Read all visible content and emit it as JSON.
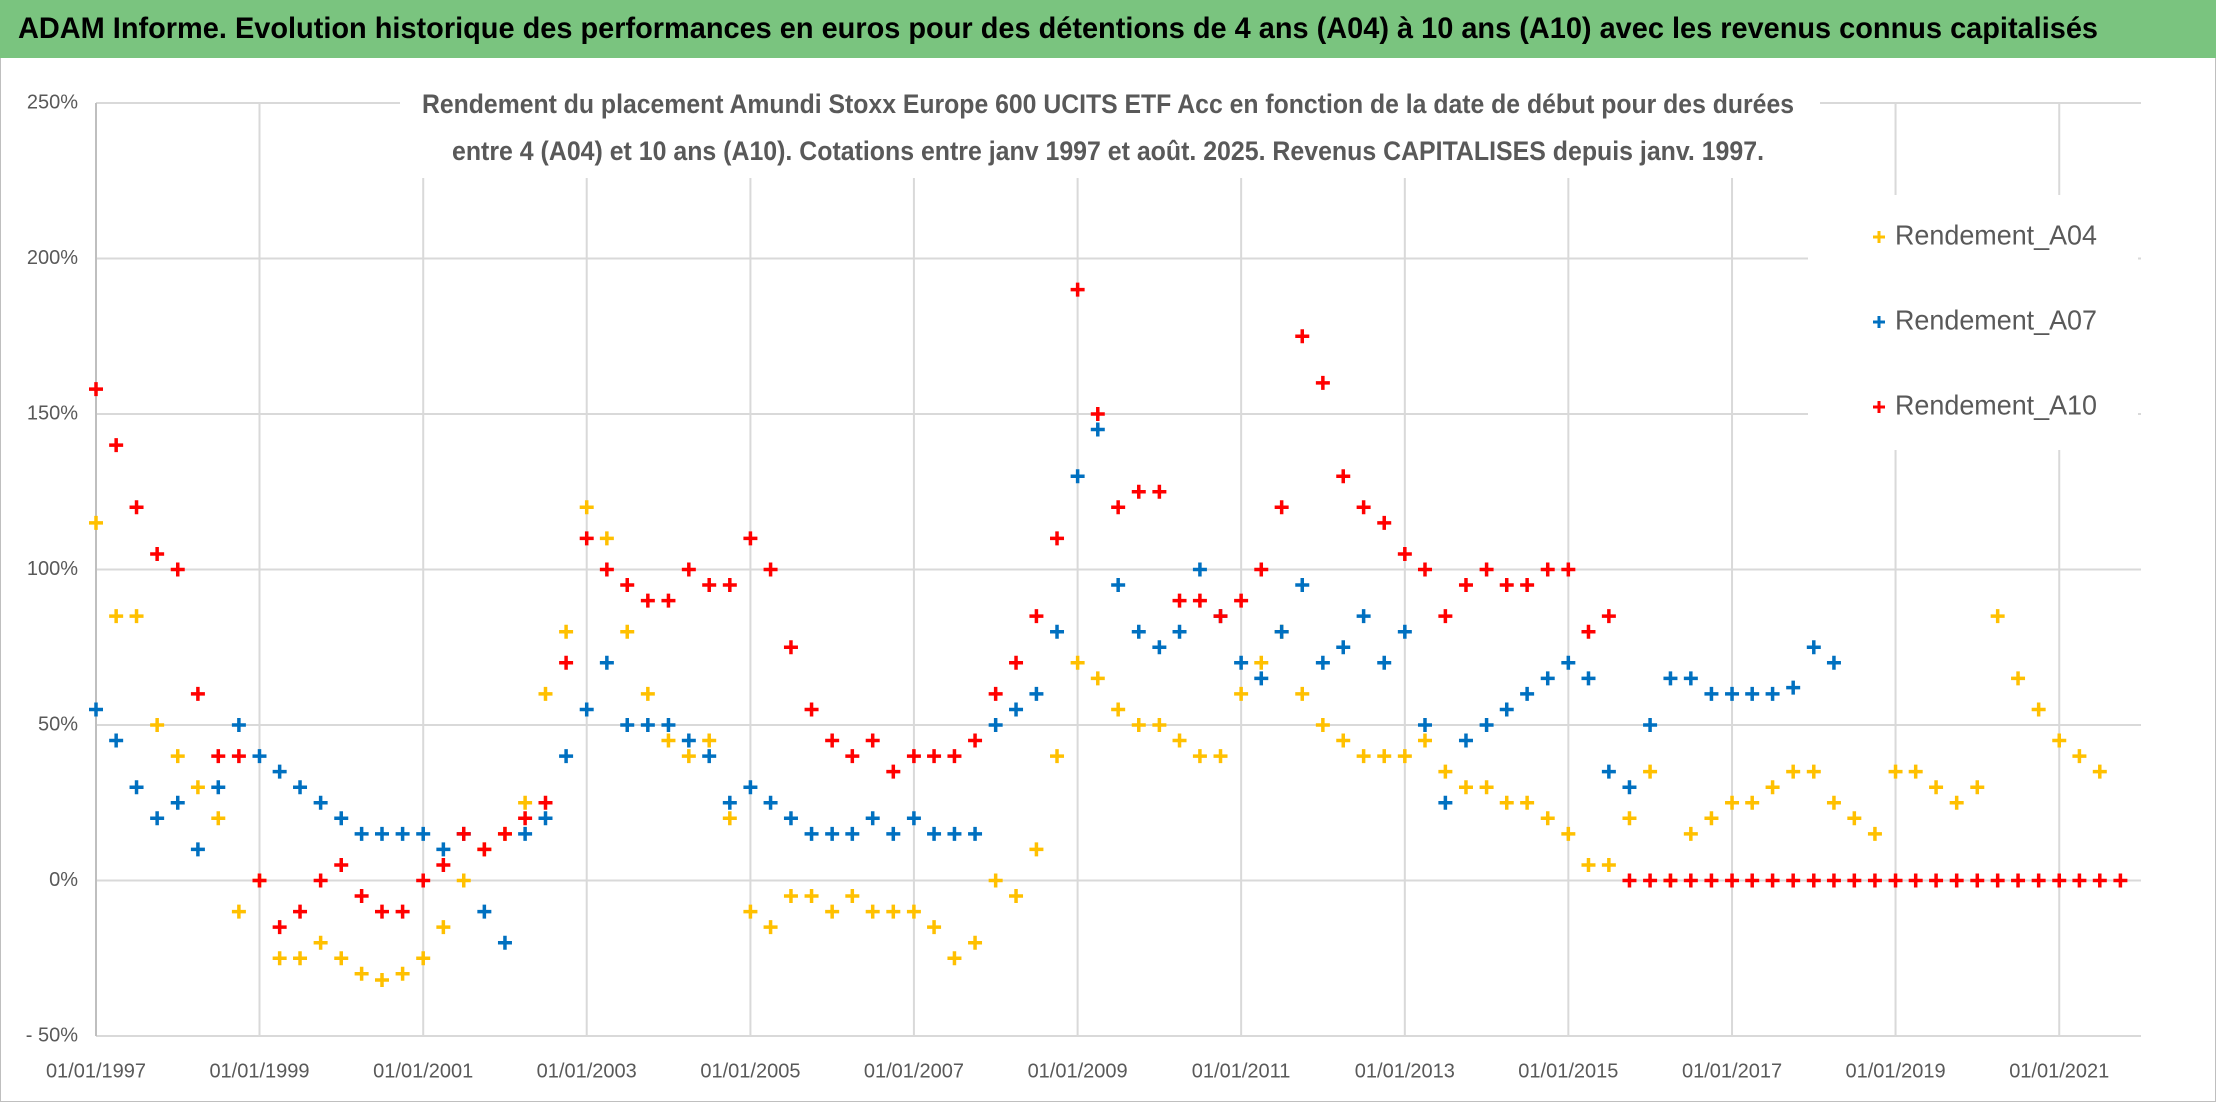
{
  "header": {
    "title": "ADAM Informe. Evolution historique des performances en euros pour des détentions de 4 ans (A04) à 10 ans (A10) avec les revenus connus capitalisés"
  },
  "chart_data": {
    "type": "scatter",
    "title": [
      "Rendement du placement Amundi Stoxx Europe 600 UCITS ETF Acc en fonction de la date de début pour des durées",
      "entre 4 (A04) et 10 ans (A10). Cotations entre janv 1997 et août. 2025. Revenus CAPITALISES depuis janv. 1997."
    ],
    "x": [
      "01/01/1997",
      "01/04/1997",
      "01/07/1997",
      "01/10/1997",
      "01/01/1998",
      "01/04/1998",
      "01/07/1998",
      "01/10/1998",
      "01/01/1999",
      "01/04/1999",
      "01/07/1999",
      "01/10/1999",
      "01/01/2000",
      "01/04/2000",
      "01/07/2000",
      "01/10/2000",
      "01/01/2001",
      "01/04/2001",
      "01/07/2001",
      "01/10/2001",
      "01/01/2002",
      "01/04/2002",
      "01/07/2002",
      "01/10/2002",
      "01/01/2003",
      "01/04/2003",
      "01/07/2003",
      "01/10/2003",
      "01/01/2004",
      "01/04/2004",
      "01/07/2004",
      "01/10/2004",
      "01/01/2005",
      "01/04/2005",
      "01/07/2005",
      "01/10/2005",
      "01/01/2006",
      "01/04/2006",
      "01/07/2006",
      "01/10/2006",
      "01/01/2007",
      "01/04/2007",
      "01/07/2007",
      "01/10/2007",
      "01/01/2008",
      "01/04/2008",
      "01/07/2008",
      "01/10/2008",
      "01/01/2009",
      "01/04/2009",
      "01/07/2009",
      "01/10/2009",
      "01/01/2010",
      "01/04/2010",
      "01/07/2010",
      "01/10/2010",
      "01/01/2011",
      "01/04/2011",
      "01/07/2011",
      "01/10/2011",
      "01/01/2012",
      "01/04/2012",
      "01/07/2012",
      "01/10/2012",
      "01/01/2013",
      "01/04/2013",
      "01/07/2013",
      "01/10/2013",
      "01/01/2014",
      "01/04/2014",
      "01/07/2014",
      "01/10/2014",
      "01/01/2015",
      "01/04/2015",
      "01/07/2015",
      "01/10/2015",
      "01/01/2016",
      "01/04/2016",
      "01/07/2016",
      "01/10/2016",
      "01/01/2017",
      "01/04/2017",
      "01/07/2017",
      "01/10/2017",
      "01/01/2018",
      "01/04/2018",
      "01/07/2018",
      "01/10/2018",
      "01/01/2019",
      "01/04/2019",
      "01/07/2019",
      "01/10/2019",
      "01/01/2020",
      "01/04/2020",
      "01/07/2020",
      "01/10/2020",
      "01/01/2021",
      "01/04/2021",
      "01/07/2021",
      "01/10/2021"
    ],
    "series": [
      {
        "name": "Rendement_A04",
        "color": "#ffc000",
        "values": [
          115,
          85,
          85,
          50,
          40,
          30,
          20,
          -10,
          0,
          -25,
          -25,
          -20,
          -25,
          -30,
          -32,
          -30,
          -25,
          -15,
          0,
          10,
          15,
          25,
          60,
          80,
          120,
          110,
          80,
          60,
          45,
          40,
          45,
          20,
          -10,
          -15,
          -5,
          -5,
          -10,
          -5,
          -10,
          -10,
          -10,
          -15,
          -25,
          -20,
          0,
          -5,
          10,
          40,
          70,
          65,
          55,
          50,
          50,
          45,
          40,
          40,
          60,
          70,
          80,
          60,
          50,
          45,
          40,
          40,
          40,
          45,
          35,
          30,
          30,
          25,
          25,
          20,
          15,
          5,
          5,
          20,
          35,
          0,
          15,
          20,
          25,
          25,
          30,
          35,
          35,
          25,
          20,
          15,
          35,
          35,
          30,
          25,
          30,
          85,
          65,
          55,
          45,
          40,
          35,
          null
        ]
      },
      {
        "name": "Rendement_A07",
        "color": "#0070c0",
        "values": [
          55,
          45,
          30,
          20,
          25,
          10,
          30,
          50,
          40,
          35,
          30,
          25,
          20,
          15,
          15,
          15,
          15,
          10,
          15,
          -10,
          -20,
          15,
          20,
          40,
          55,
          70,
          50,
          50,
          50,
          45,
          40,
          25,
          30,
          25,
          20,
          15,
          15,
          15,
          20,
          15,
          20,
          15,
          15,
          15,
          50,
          55,
          60,
          80,
          130,
          145,
          95,
          80,
          75,
          80,
          100,
          85,
          70,
          65,
          80,
          95,
          70,
          75,
          85,
          70,
          80,
          50,
          25,
          45,
          50,
          55,
          60,
          65,
          70,
          65,
          35,
          30,
          50,
          65,
          65,
          60,
          60,
          60,
          60,
          62,
          75,
          70,
          null,
          null,
          null,
          null,
          null,
          null,
          null,
          null,
          null,
          null,
          null,
          null,
          null,
          null
        ]
      },
      {
        "name": "Rendement_A10",
        "color": "#ff0000",
        "values": [
          158,
          140,
          120,
          105,
          100,
          60,
          40,
          40,
          0,
          -15,
          -10,
          0,
          5,
          -5,
          -10,
          -10,
          0,
          5,
          15,
          10,
          15,
          20,
          25,
          70,
          110,
          100,
          95,
          90,
          90,
          100,
          95,
          95,
          110,
          100,
          75,
          55,
          45,
          40,
          45,
          35,
          40,
          40,
          40,
          45,
          60,
          70,
          85,
          110,
          190,
          150,
          120,
          125,
          125,
          90,
          90,
          85,
          90,
          100,
          120,
          175,
          160,
          130,
          120,
          115,
          105,
          100,
          85,
          95,
          100,
          95,
          95,
          100,
          100,
          80,
          85,
          0,
          0,
          0,
          0,
          0,
          0,
          0,
          0,
          0,
          0,
          0,
          0,
          0,
          0,
          0,
          0,
          0,
          0,
          0,
          0,
          0,
          0,
          0,
          0,
          0
        ]
      }
    ],
    "xlim": [
      "01/01/1997",
      "01/01/2022"
    ],
    "xticks": [
      "01/01/1997",
      "01/01/1999",
      "01/01/2001",
      "01/01/2003",
      "01/01/2005",
      "01/01/2007",
      "01/01/2009",
      "01/01/2011",
      "01/01/2013",
      "01/01/2015",
      "01/01/2017",
      "01/01/2019",
      "01/01/2021"
    ],
    "ylim": [
      -50,
      250
    ],
    "yticks": [
      {
        "value": -50,
        "label": "- 50%"
      },
      {
        "value": 0,
        "label": "0%"
      },
      {
        "value": 50,
        "label": "50%"
      },
      {
        "value": 100,
        "label": "100%"
      },
      {
        "value": 150,
        "label": "150%"
      },
      {
        "value": 200,
        "label": "200%"
      },
      {
        "value": 250,
        "label": "250%"
      }
    ],
    "grid": true,
    "legend": "upper right"
  }
}
